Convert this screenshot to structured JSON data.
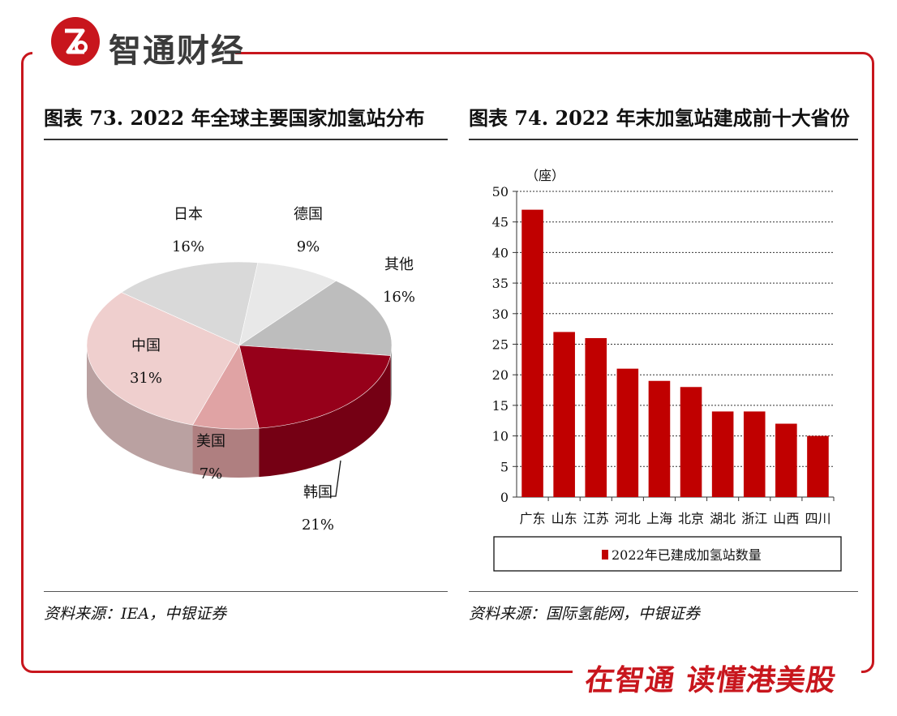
{
  "header": {
    "brand": "智通财经",
    "logo_icon": "zhitong-logo-icon"
  },
  "footer": {
    "slogan": "在智通 读懂港美股"
  },
  "colors": {
    "brand_red": "#c8161d",
    "bar_red": "#c00000"
  },
  "chart_data": [
    {
      "type": "pie",
      "title": "图表 73. 2022 年全球主要国家加氢站分布",
      "source": "资料来源：IEA，中银证券",
      "slices": [
        {
          "label": "日本",
          "value": 16,
          "value_label": "16%",
          "color": "#d9d9d9"
        },
        {
          "label": "德国",
          "value": 9,
          "value_label": "9%",
          "color": "#e8e8e8"
        },
        {
          "label": "其他",
          "value": 16,
          "value_label": "16%",
          "color": "#bdbdbd"
        },
        {
          "label": "韩国",
          "value": 21,
          "value_label": "21%",
          "color": "#96001a"
        },
        {
          "label": "美国",
          "value": 7,
          "value_label": "7%",
          "color": "#e0a3a4"
        },
        {
          "label": "中国",
          "value": 31,
          "value_label": "31%",
          "color": "#efcfce"
        }
      ]
    },
    {
      "type": "bar",
      "title": "图表 74. 2022 年末加氢站建成前十大省份",
      "source": "资料来源：国际氢能网，中银证券",
      "unit": "（座）",
      "categories": [
        "广东",
        "山东",
        "江苏",
        "河北",
        "上海",
        "北京",
        "湖北",
        "浙江",
        "山西",
        "四川"
      ],
      "series": [
        {
          "name": "2022年已建成加氢站数量",
          "values": [
            47,
            27,
            26,
            21,
            19,
            18,
            14,
            14,
            12,
            10
          ]
        }
      ],
      "ylim": [
        0,
        50
      ],
      "yticks": [
        0,
        5,
        10,
        15,
        20,
        25,
        30,
        35,
        40,
        45,
        50
      ],
      "grid": true,
      "legend": "bottom"
    }
  ]
}
